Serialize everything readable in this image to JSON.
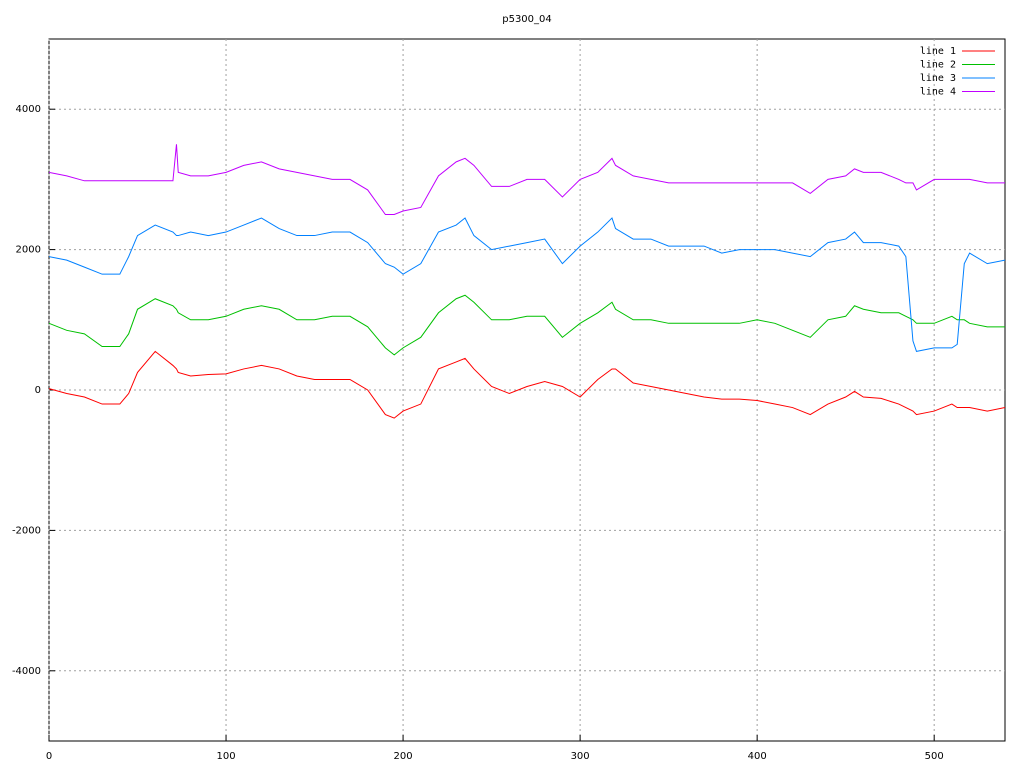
{
  "chart_data": {
    "type": "line",
    "title": "p5300_04",
    "x": [
      0,
      10,
      20,
      30,
      40,
      45,
      50,
      60,
      70,
      72,
      73,
      80,
      90,
      100,
      110,
      120,
      130,
      140,
      150,
      160,
      170,
      180,
      190,
      195,
      200,
      210,
      220,
      230,
      235,
      240,
      250,
      260,
      270,
      280,
      290,
      300,
      310,
      318,
      320,
      330,
      340,
      350,
      360,
      370,
      380,
      390,
      400,
      410,
      420,
      430,
      440,
      450,
      455,
      460,
      470,
      480,
      484,
      488,
      490,
      500,
      510,
      513,
      517,
      520,
      530,
      540
    ],
    "series": [
      {
        "name": "line 1",
        "color": "#ff0000",
        "values": [
          20,
          -50,
          -100,
          -200,
          -200,
          -50,
          250,
          550,
          350,
          300,
          250,
          200,
          220,
          230,
          300,
          350,
          300,
          200,
          150,
          150,
          150,
          0,
          -350,
          -400,
          -300,
          -200,
          300,
          400,
          450,
          300,
          50,
          -50,
          50,
          120,
          50,
          -100,
          150,
          300,
          300,
          100,
          50,
          0,
          -50,
          -100,
          -130,
          -130,
          -150,
          -200,
          -250,
          -350,
          -200,
          -100,
          -20,
          -100,
          -120,
          -200,
          -250,
          -300,
          -350,
          -300,
          -200,
          -250,
          -250,
          -250,
          -300,
          -250
        ]
      },
      {
        "name": "line 2",
        "color": "#00c000",
        "values": [
          950,
          850,
          800,
          620,
          620,
          800,
          1150,
          1300,
          1200,
          1150,
          1100,
          1000,
          1000,
          1050,
          1150,
          1200,
          1150,
          1000,
          1000,
          1050,
          1050,
          900,
          600,
          500,
          600,
          750,
          1100,
          1300,
          1350,
          1250,
          1000,
          1000,
          1050,
          1050,
          750,
          950,
          1100,
          1250,
          1150,
          1000,
          1000,
          950,
          950,
          950,
          950,
          950,
          1000,
          950,
          850,
          750,
          1000,
          1050,
          1200,
          1150,
          1100,
          1100,
          1050,
          1000,
          950,
          950,
          1050,
          1000,
          1000,
          950,
          900,
          900
        ]
      },
      {
        "name": "line 3",
        "color": "#0080ff",
        "values": [
          1900,
          1850,
          1750,
          1650,
          1650,
          1900,
          2200,
          2350,
          2250,
          2200,
          2200,
          2250,
          2200,
          2250,
          2350,
          2450,
          2300,
          2200,
          2200,
          2250,
          2250,
          2100,
          1800,
          1750,
          1650,
          1800,
          2250,
          2350,
          2450,
          2200,
          2000,
          2050,
          2100,
          2150,
          1800,
          2050,
          2250,
          2450,
          2300,
          2150,
          2150,
          2050,
          2050,
          2050,
          1950,
          2000,
          2000,
          2000,
          1950,
          1900,
          2100,
          2150,
          2250,
          2100,
          2100,
          2050,
          1900,
          700,
          550,
          600,
          600,
          650,
          1800,
          1950,
          1800,
          1850
        ]
      },
      {
        "name": "line 4",
        "color": "#c000ff",
        "values": [
          3100,
          3050,
          2980,
          2980,
          2980,
          2980,
          2980,
          2980,
          2980,
          3500,
          3100,
          3050,
          3050,
          3100,
          3200,
          3250,
          3150,
          3100,
          3050,
          3000,
          3000,
          2850,
          2500,
          2500,
          2550,
          2600,
          3050,
          3250,
          3300,
          3200,
          2900,
          2900,
          3000,
          3000,
          2750,
          3000,
          3100,
          3300,
          3200,
          3050,
          3000,
          2950,
          2950,
          2950,
          2950,
          2950,
          2950,
          2950,
          2950,
          2800,
          3000,
          3050,
          3150,
          3100,
          3100,
          3000,
          2950,
          2950,
          2850,
          3000,
          3000,
          3000,
          3000,
          3000,
          2950,
          2950
        ]
      }
    ],
    "xlim": [
      0,
      540
    ],
    "ylim": [
      -5000,
      5000
    ],
    "xticks": [
      0,
      100,
      200,
      300,
      400,
      500
    ],
    "yticks": [
      -4000,
      -2000,
      0,
      2000,
      4000
    ],
    "grid": true,
    "legend": "top-right"
  }
}
